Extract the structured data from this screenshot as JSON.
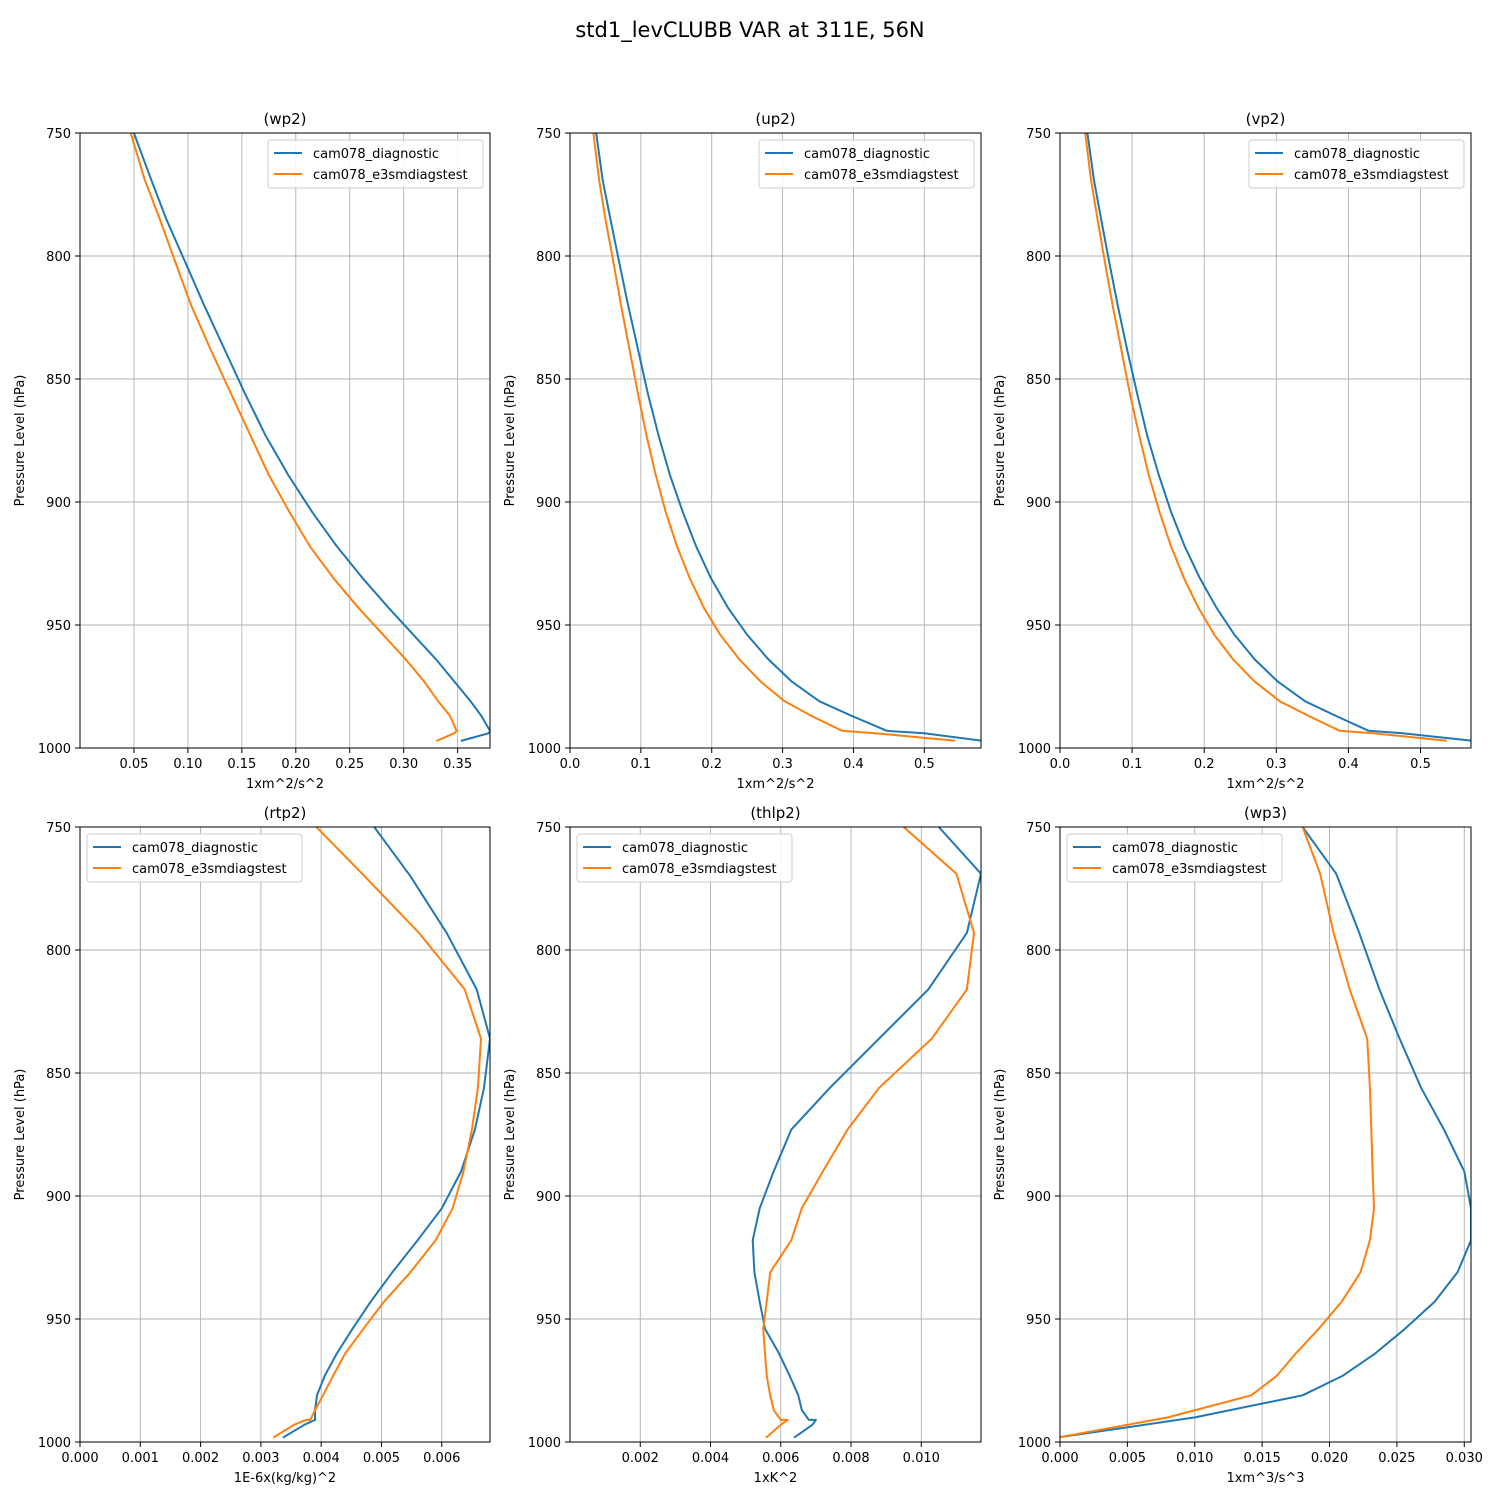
{
  "figure_title": "std1_levCLUBB VAR at 311E, 56N",
  "colors": {
    "series1": "#1f77b4",
    "series2": "#ff7f0e",
    "grid": "#b0b0b0"
  },
  "chart_data": [
    {
      "type": "line",
      "title": "(wp2)",
      "xlabel": "1xm^2/s^2",
      "ylabel": "Pressure Level (hPa)",
      "xlim": [
        0.0,
        0.38
      ],
      "ylim": [
        1000,
        750
      ],
      "xticks": [
        "0.05",
        "0.10",
        "0.15",
        "0.20",
        "0.25",
        "0.30",
        "0.35"
      ],
      "xtick_values": [
        0.05,
        0.1,
        0.15,
        0.2,
        0.25,
        0.3,
        0.35
      ],
      "yticks": [
        "750",
        "800",
        "850",
        "900",
        "950",
        "1000"
      ],
      "ytick_values": [
        750,
        800,
        850,
        900,
        950,
        1000
      ],
      "legend": "top-right",
      "grid": true,
      "series": [
        {
          "name": "cam078_diagnostic",
          "color": "#1f77b4",
          "x": [
            0.05,
            0.066,
            0.08,
            0.097,
            0.115,
            0.134,
            0.153,
            0.172,
            0.193,
            0.215,
            0.238,
            0.262,
            0.286,
            0.309,
            0.33,
            0.347,
            0.362,
            0.372,
            0.38,
            0.379,
            0.354
          ],
          "y": [
            750,
            769,
            785,
            802,
            820,
            838,
            856,
            873,
            889,
            904,
            918,
            931,
            943,
            954,
            964,
            973,
            981,
            987,
            993,
            994,
            997
          ]
        },
        {
          "name": "cam078_e3smdiagstest",
          "color": "#ff7f0e",
          "x": [
            0.047,
            0.06,
            0.074,
            0.088,
            0.103,
            0.121,
            0.14,
            0.158,
            0.175,
            0.194,
            0.213,
            0.235,
            0.258,
            0.281,
            0.302,
            0.319,
            0.332,
            0.343,
            0.349,
            0.347,
            0.331
          ],
          "y": [
            750,
            769,
            785,
            802,
            820,
            838,
            856,
            873,
            889,
            904,
            918,
            931,
            943,
            954,
            964,
            973,
            981,
            987,
            993,
            994,
            997
          ]
        }
      ]
    },
    {
      "type": "line",
      "title": "(up2)",
      "xlabel": "1xm^2/s^2",
      "ylabel": "Pressure Level (hPa)",
      "xlim": [
        0.0,
        0.58
      ],
      "ylim": [
        1000,
        750
      ],
      "xticks": [
        "0.0",
        "0.1",
        "0.2",
        "0.3",
        "0.4",
        "0.5"
      ],
      "xtick_values": [
        0.0,
        0.1,
        0.2,
        0.3,
        0.4,
        0.5
      ],
      "yticks": [
        "750",
        "800",
        "850",
        "900",
        "950",
        "1000"
      ],
      "ytick_values": [
        750,
        800,
        850,
        900,
        950,
        1000
      ],
      "legend": "top-right",
      "grid": true,
      "series": [
        {
          "name": "cam078_diagnostic",
          "color": "#1f77b4",
          "x": [
            0.037,
            0.046,
            0.057,
            0.069,
            0.082,
            0.096,
            0.11,
            0.125,
            0.141,
            0.159,
            0.178,
            0.199,
            0.223,
            0.25,
            0.28,
            0.313,
            0.352,
            0.398,
            0.447,
            0.5,
            0.58
          ],
          "y": [
            750,
            769,
            785,
            802,
            820,
            838,
            856,
            873,
            889,
            904,
            918,
            931,
            943,
            954,
            964,
            973,
            981,
            987,
            993,
            994,
            997
          ]
        },
        {
          "name": "cam078_e3smdiagstest",
          "color": "#ff7f0e",
          "x": [
            0.033,
            0.041,
            0.05,
            0.061,
            0.072,
            0.084,
            0.096,
            0.108,
            0.121,
            0.135,
            0.151,
            0.169,
            0.189,
            0.212,
            0.239,
            0.269,
            0.303,
            0.341,
            0.384,
            0.43,
            0.542
          ],
          "y": [
            750,
            769,
            785,
            802,
            820,
            838,
            856,
            873,
            889,
            904,
            918,
            931,
            943,
            954,
            964,
            973,
            981,
            987,
            993,
            994,
            997
          ]
        }
      ]
    },
    {
      "type": "line",
      "title": "(vp2)",
      "xlabel": "1xm^2/s^2",
      "ylabel": "Pressure Level (hPa)",
      "xlim": [
        0.0,
        0.57
      ],
      "ylim": [
        1000,
        750
      ],
      "xticks": [
        "0.0",
        "0.1",
        "0.2",
        "0.3",
        "0.4",
        "0.5"
      ],
      "xtick_values": [
        0.0,
        0.1,
        0.2,
        0.3,
        0.4,
        0.5
      ],
      "yticks": [
        "750",
        "800",
        "850",
        "900",
        "950",
        "1000"
      ],
      "ytick_values": [
        750,
        800,
        850,
        900,
        950,
        1000
      ],
      "legend": "top-right",
      "grid": true,
      "series": [
        {
          "name": "cam078_diagnostic",
          "color": "#1f77b4",
          "x": [
            0.038,
            0.047,
            0.057,
            0.068,
            0.08,
            0.093,
            0.107,
            0.121,
            0.137,
            0.154,
            0.173,
            0.194,
            0.217,
            0.242,
            0.27,
            0.302,
            0.34,
            0.383,
            0.428,
            0.475,
            0.57
          ],
          "y": [
            750,
            769,
            785,
            802,
            820,
            838,
            856,
            873,
            889,
            904,
            918,
            931,
            943,
            954,
            964,
            973,
            981,
            987,
            993,
            994,
            997
          ]
        },
        {
          "name": "cam078_e3smdiagstest",
          "color": "#ff7f0e",
          "x": [
            0.035,
            0.043,
            0.052,
            0.062,
            0.073,
            0.085,
            0.097,
            0.11,
            0.123,
            0.138,
            0.154,
            0.172,
            0.192,
            0.214,
            0.24,
            0.27,
            0.305,
            0.345,
            0.388,
            0.434,
            0.535
          ],
          "y": [
            750,
            769,
            785,
            802,
            820,
            838,
            856,
            873,
            889,
            904,
            918,
            931,
            943,
            954,
            964,
            973,
            981,
            987,
            993,
            994,
            997
          ]
        }
      ]
    },
    {
      "type": "line",
      "title": "(rtp2)",
      "xlabel": "1E-6x(kg/kg)^2",
      "ylabel": "Pressure Level (hPa)",
      "xlim": [
        0.0,
        0.0068
      ],
      "ylim": [
        1000,
        750
      ],
      "xticks": [
        "0.000",
        "0.001",
        "0.002",
        "0.003",
        "0.004",
        "0.005",
        "0.006"
      ],
      "xtick_values": [
        0.0,
        0.001,
        0.002,
        0.003,
        0.004,
        0.005,
        0.006
      ],
      "yticks": [
        "750",
        "800",
        "850",
        "900",
        "950",
        "1000"
      ],
      "ytick_values": [
        750,
        800,
        850,
        900,
        950,
        1000
      ],
      "legend": "top-left",
      "grid": true,
      "series": [
        {
          "name": "cam078_diagnostic",
          "color": "#1f77b4",
          "x": [
            0.00488,
            0.00548,
            0.00608,
            0.00658,
            0.0068,
            0.0067,
            0.00655,
            0.00632,
            0.006,
            0.0056,
            0.00518,
            0.00482,
            0.00452,
            0.00426,
            0.00406,
            0.00393,
            0.0039,
            0.0039,
            0.0039,
            0.00372,
            0.00338
          ],
          "y": [
            750,
            770,
            793,
            816,
            836,
            856,
            873,
            890,
            905,
            918,
            931,
            943,
            954,
            964,
            973,
            981,
            987,
            991,
            991,
            993,
            998
          ]
        },
        {
          "name": "cam078_e3smdiagstest",
          "color": "#ff7f0e",
          "x": [
            0.00392,
            0.00472,
            0.00562,
            0.00638,
            0.00665,
            0.0066,
            0.0065,
            0.00636,
            0.00618,
            0.0059,
            0.00548,
            0.00504,
            0.0047,
            0.0044,
            0.0042,
            0.00403,
            0.0039,
            0.00382,
            0.00375,
            0.00355,
            0.00322
          ],
          "y": [
            750,
            770,
            793,
            816,
            836,
            856,
            873,
            890,
            905,
            918,
            931,
            943,
            954,
            964,
            973,
            981,
            987,
            991,
            991,
            993,
            998
          ]
        }
      ]
    },
    {
      "type": "line",
      "title": "(thlp2)",
      "xlabel": "1xK^2",
      "ylabel": "Pressure Level (hPa)",
      "xlim": [
        0.0,
        0.0117
      ],
      "ylim": [
        1000,
        750
      ],
      "xticks": [
        "0.002",
        "0.004",
        "0.006",
        "0.008",
        "0.010"
      ],
      "xtick_values": [
        0.002,
        0.004,
        0.006,
        0.008,
        0.01
      ],
      "yticks": [
        "750",
        "800",
        "850",
        "900",
        "950",
        "1000"
      ],
      "ytick_values": [
        750,
        800,
        850,
        900,
        950,
        1000
      ],
      "legend": "top-left",
      "grid": true,
      "series": [
        {
          "name": "cam078_diagnostic",
          "color": "#1f77b4",
          "x": [
            0.0105,
            0.0117,
            0.0113,
            0.0102,
            0.0088,
            0.0074,
            0.0063,
            0.0058,
            0.0054,
            0.0052,
            0.00525,
            0.0054,
            0.00555,
            0.00595,
            0.00625,
            0.0065,
            0.0066,
            0.0068,
            0.007,
            0.0069,
            0.0064
          ],
          "y": [
            750,
            769,
            793,
            816,
            836,
            856,
            873,
            890,
            905,
            918,
            931,
            943,
            954,
            964,
            973,
            981,
            987,
            991,
            991,
            993,
            998
          ]
        },
        {
          "name": "cam078_e3smdiagstest",
          "color": "#ff7f0e",
          "x": [
            0.0095,
            0.011,
            0.0115,
            0.0113,
            0.0103,
            0.0088,
            0.0079,
            0.0072,
            0.0066,
            0.0063,
            0.0057,
            0.0056,
            0.0055,
            0.00555,
            0.0056,
            0.0057,
            0.0058,
            0.006,
            0.0062,
            0.006,
            0.0056
          ],
          "y": [
            750,
            769,
            793,
            816,
            836,
            856,
            873,
            890,
            905,
            918,
            931,
            943,
            954,
            964,
            973,
            981,
            987,
            991,
            991,
            993,
            998
          ]
        }
      ]
    },
    {
      "type": "line",
      "title": "(wp3)",
      "xlabel": "1xm^3/s^3",
      "ylabel": "Pressure Level (hPa)",
      "xlim": [
        0.0,
        0.0305
      ],
      "ylim": [
        1000,
        750
      ],
      "xticks": [
        "0.000",
        "0.005",
        "0.010",
        "0.015",
        "0.020",
        "0.025",
        "0.030"
      ],
      "xtick_values": [
        0.0,
        0.005,
        0.01,
        0.015,
        0.02,
        0.025,
        0.03
      ],
      "yticks": [
        "750",
        "800",
        "850",
        "900",
        "950",
        "1000"
      ],
      "ytick_values": [
        750,
        800,
        850,
        900,
        950,
        1000
      ],
      "legend": "top-left",
      "grid": true,
      "series": [
        {
          "name": "cam078_diagnostic",
          "color": "#1f77b4",
          "x": [
            0.018,
            0.0205,
            0.0222,
            0.0237,
            0.0252,
            0.0268,
            0.0285,
            0.03,
            0.0305,
            0.0305,
            0.0295,
            0.0278,
            0.0256,
            0.0234,
            0.021,
            0.018,
            0.01,
            0.0
          ],
          "y": [
            750,
            769,
            793,
            816,
            836,
            856,
            873,
            890,
            905,
            918,
            931,
            943,
            954,
            964,
            973,
            981,
            990,
            998
          ]
        },
        {
          "name": "cam078_e3smdiagstest",
          "color": "#ff7f0e",
          "x": [
            0.018,
            0.0193,
            0.0203,
            0.0215,
            0.0228,
            0.023,
            0.0231,
            0.0232,
            0.0233,
            0.023,
            0.0223,
            0.0209,
            0.0192,
            0.0175,
            0.0161,
            0.0142,
            0.008,
            0.0
          ],
          "y": [
            750,
            769,
            793,
            816,
            836,
            856,
            873,
            890,
            905,
            918,
            931,
            943,
            954,
            964,
            973,
            981,
            990,
            998
          ]
        }
      ]
    }
  ]
}
